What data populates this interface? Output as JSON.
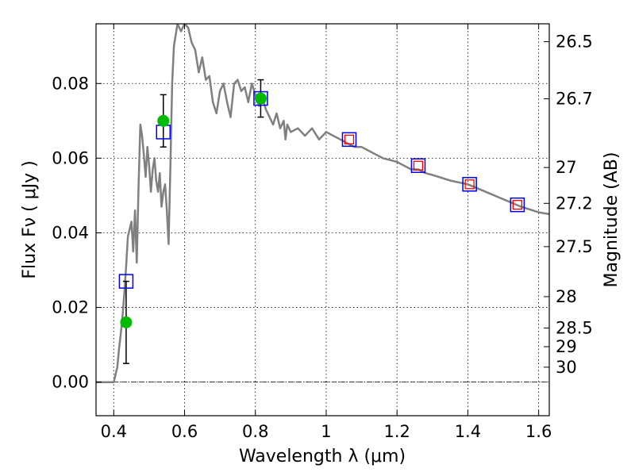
{
  "chart_data": {
    "type": "scatter",
    "xlabel": "Wavelength  λ (μm)",
    "ylabel": "Flux  Fν  ( μJy )",
    "y2label": "Magnitude (AB)",
    "xlim": [
      0.35,
      1.63
    ],
    "ylim": [
      -0.009,
      0.096
    ],
    "x_ticks": [
      0.4,
      0.6,
      0.8,
      1.0,
      1.2,
      1.4,
      1.6
    ],
    "x_tick_labels": [
      "0.4",
      "0.6",
      "0.8",
      "1",
      "1.2",
      "1.4",
      "1.6"
    ],
    "y_ticks": [
      0.0,
      0.02,
      0.04,
      0.06,
      0.08
    ],
    "y_tick_labels": [
      "0.00",
      "0.02",
      "0.04",
      "0.06",
      "0.08"
    ],
    "mag_ticks": [
      {
        "label": "26.5",
        "flux": 0.0912
      },
      {
        "label": "26.7",
        "flux": 0.0759
      },
      {
        "label": "27",
        "flux": 0.0575
      },
      {
        "label": "27.2",
        "flux": 0.0479
      },
      {
        "label": "27.5",
        "flux": 0.0363
      },
      {
        "label": "28",
        "flux": 0.0229
      },
      {
        "label": "28.5",
        "flux": 0.0145
      },
      {
        "label": "29",
        "flux": 0.0095
      },
      {
        "label": "30",
        "flux": 0.004
      }
    ],
    "grid": true,
    "zero_line": true,
    "colors": {
      "sed": "#808080",
      "observed": "#00bb00",
      "model_square": "#0000ee",
      "model_inner": "#ee0000",
      "errorbar": "#000000"
    },
    "series": [
      {
        "kind": "line",
        "x": [
          0.35,
          0.4,
          0.41,
          0.415,
          0.42,
          0.425,
          0.43,
          0.435,
          0.44,
          0.445,
          0.45,
          0.455,
          0.46,
          0.465,
          0.47,
          0.475,
          0.48,
          0.485,
          0.49,
          0.495,
          0.5,
          0.505,
          0.51,
          0.515,
          0.52,
          0.525,
          0.53,
          0.535,
          0.54,
          0.545,
          0.55,
          0.555,
          0.56,
          0.565,
          0.57,
          0.58,
          0.59,
          0.6,
          0.61,
          0.62,
          0.63,
          0.64,
          0.65,
          0.66,
          0.67,
          0.68,
          0.69,
          0.7,
          0.71,
          0.72,
          0.73,
          0.74,
          0.75,
          0.76,
          0.77,
          0.78,
          0.79,
          0.8,
          0.81,
          0.82,
          0.83,
          0.84,
          0.85,
          0.86,
          0.87,
          0.88,
          0.885,
          0.89,
          0.9,
          0.92,
          0.94,
          0.96,
          0.98,
          1.0,
          1.02,
          1.04,
          1.06,
          1.08,
          1.1,
          1.12,
          1.14,
          1.16,
          1.18,
          1.2,
          1.22,
          1.24,
          1.26,
          1.28,
          1.3,
          1.35,
          1.4,
          1.45,
          1.5,
          1.55,
          1.6,
          1.63
        ],
        "y": [
          0.0,
          0.0,
          0.004,
          0.009,
          0.013,
          0.018,
          0.024,
          0.031,
          0.039,
          0.041,
          0.043,
          0.035,
          0.046,
          0.032,
          0.052,
          0.069,
          0.066,
          0.061,
          0.055,
          0.063,
          0.058,
          0.051,
          0.057,
          0.06,
          0.054,
          0.051,
          0.056,
          0.047,
          0.051,
          0.053,
          0.046,
          0.037,
          0.058,
          0.08,
          0.09,
          0.096,
          0.094,
          0.096,
          0.095,
          0.091,
          0.089,
          0.083,
          0.087,
          0.081,
          0.082,
          0.075,
          0.072,
          0.078,
          0.08,
          0.075,
          0.071,
          0.08,
          0.081,
          0.078,
          0.079,
          0.075,
          0.08,
          0.077,
          0.074,
          0.076,
          0.073,
          0.071,
          0.069,
          0.072,
          0.068,
          0.07,
          0.065,
          0.069,
          0.067,
          0.068,
          0.066,
          0.068,
          0.065,
          0.067,
          0.066,
          0.065,
          0.064,
          0.063,
          0.063,
          0.062,
          0.061,
          0.06,
          0.0595,
          0.059,
          0.058,
          0.057,
          0.057,
          0.056,
          0.0555,
          0.054,
          0.053,
          0.051,
          0.049,
          0.047,
          0.0455,
          0.045
        ]
      },
      {
        "kind": "observed",
        "x": [
          0.435,
          0.54,
          0.815
        ],
        "y": [
          0.016,
          0.07,
          0.076
        ],
        "yerr_low": [
          0.011,
          0.007,
          0.005
        ],
        "yerr_high": [
          0.011,
          0.007,
          0.005
        ]
      },
      {
        "kind": "model",
        "x": [
          0.435,
          0.54,
          0.815,
          1.065,
          1.26,
          1.405,
          1.54
        ],
        "y": [
          0.027,
          0.067,
          0.076,
          0.065,
          0.058,
          0.053,
          0.0475
        ],
        "inner": [
          false,
          false,
          false,
          true,
          true,
          true,
          true
        ]
      }
    ]
  }
}
